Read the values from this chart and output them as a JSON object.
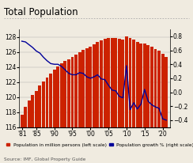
{
  "title": "Total Population",
  "source": "Source: IMF, Global Property Guide",
  "years": [
    1981,
    1982,
    1983,
    1984,
    1985,
    1986,
    1987,
    1988,
    1989,
    1990,
    1991,
    1992,
    1993,
    1994,
    1995,
    1996,
    1997,
    1998,
    1999,
    2000,
    2001,
    2002,
    2003,
    2004,
    2005,
    2006,
    2007,
    2008,
    2009,
    2010,
    2011,
    2012,
    2013,
    2014,
    2015,
    2016,
    2017,
    2018,
    2019,
    2020,
    2021
  ],
  "population": [
    117.6,
    118.7,
    119.5,
    120.3,
    120.8,
    121.5,
    122.1,
    122.6,
    123.1,
    123.6,
    124.1,
    124.5,
    124.8,
    125.0,
    125.3,
    125.6,
    126.0,
    126.3,
    126.5,
    126.7,
    127.0,
    127.3,
    127.5,
    127.7,
    127.8,
    127.8,
    127.8,
    127.7,
    127.6,
    128.1,
    127.8,
    127.6,
    127.3,
    127.1,
    127.1,
    126.9,
    126.7,
    126.4,
    126.2,
    125.7,
    125.3
  ],
  "pop_growth": [
    0.73,
    0.72,
    0.68,
    0.64,
    0.59,
    0.56,
    0.5,
    0.45,
    0.41,
    0.4,
    0.4,
    0.37,
    0.32,
    0.27,
    0.25,
    0.25,
    0.28,
    0.27,
    0.22,
    0.2,
    0.22,
    0.25,
    0.19,
    0.18,
    0.1,
    0.03,
    0.02,
    -0.06,
    -0.08,
    0.38,
    -0.25,
    -0.15,
    -0.24,
    -0.17,
    0.04,
    -0.13,
    -0.18,
    -0.21,
    -0.23,
    -0.38,
    -0.4
  ],
  "bar_color": "#cc2200",
  "line_color": "#000099",
  "background_color": "#f0ebe0",
  "ylim_left": [
    116,
    129
  ],
  "ylim_right": [
    -0.5,
    0.9
  ],
  "yticks_left": [
    116,
    118,
    120,
    122,
    124,
    126,
    128
  ],
  "yticks_right": [
    -0.4,
    -0.2,
    0.0,
    0.2,
    0.4,
    0.6,
    0.8
  ],
  "xtick_labels": [
    "'81",
    "'85",
    "'90",
    "'95",
    "'00",
    "'05",
    "'10",
    "'15",
    "'20"
  ],
  "xtick_positions": [
    1981,
    1985,
    1990,
    1995,
    2000,
    2005,
    2010,
    2015,
    2020
  ],
  "legend_bar": "Population in million persons (left scale)",
  "legend_line": "Population growth % (right scale)",
  "title_fontsize": 8.5,
  "axis_fontsize": 5.5,
  "legend_fontsize": 4.2,
  "source_fontsize": 4.2
}
